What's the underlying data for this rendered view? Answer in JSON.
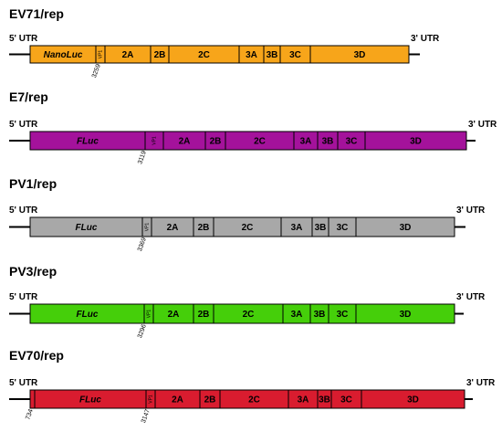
{
  "constructs": [
    {
      "title": "EV71/rep",
      "color": "#f7a51a",
      "left_utr": "5' UTR",
      "right_utr": "3' UTR",
      "segments": [
        {
          "label": "NanoLuc",
          "italic": true
        },
        {
          "label": "VP1",
          "tiny": true
        },
        {
          "label": "2A"
        },
        {
          "label": "2B"
        },
        {
          "label": "2C"
        },
        {
          "label": "3A"
        },
        {
          "label": "3B"
        },
        {
          "label": "3C"
        },
        {
          "label": "3D"
        }
      ],
      "positions": [
        {
          "label": "3259"
        }
      ]
    },
    {
      "title": "E7/rep",
      "color": "#a4129b",
      "left_utr": "5' UTR",
      "right_utr": "3' UTR",
      "segments": [
        {
          "label": "FLuc",
          "italic": true
        },
        {
          "label": "VP1",
          "tiny": true
        },
        {
          "label": "2A"
        },
        {
          "label": "2B"
        },
        {
          "label": "2C"
        },
        {
          "label": "3A"
        },
        {
          "label": "3B"
        },
        {
          "label": "3C"
        },
        {
          "label": "3D"
        }
      ],
      "positions": [
        {
          "label": "3119"
        }
      ]
    },
    {
      "title": "PV1/rep",
      "color": "#a8a8a8",
      "left_utr": "5' UTR",
      "right_utr": "3' UTR",
      "segments": [
        {
          "label": "FLuc",
          "italic": true
        },
        {
          "label": "VP1",
          "tiny": true
        },
        {
          "label": "2A"
        },
        {
          "label": "2B"
        },
        {
          "label": "2C"
        },
        {
          "label": "3A"
        },
        {
          "label": "3B"
        },
        {
          "label": "3C"
        },
        {
          "label": "3D"
        }
      ],
      "positions": [
        {
          "label": "3369"
        }
      ]
    },
    {
      "title": "PV3/rep",
      "color": "#45cf0a",
      "left_utr": "5' UTR",
      "right_utr": "3' UTR",
      "segments": [
        {
          "label": "FLuc",
          "italic": true
        },
        {
          "label": "VP1",
          "tiny": true
        },
        {
          "label": "2A"
        },
        {
          "label": "2B"
        },
        {
          "label": "2C"
        },
        {
          "label": "3A"
        },
        {
          "label": "3B"
        },
        {
          "label": "3C"
        },
        {
          "label": "3D"
        }
      ],
      "positions": [
        {
          "label": "3296"
        }
      ]
    },
    {
      "title": "EV70/rep",
      "color": "#d91c2f",
      "left_utr": "5' UTR",
      "right_utr": "3' UTR",
      "segments": [
        {
          "label": "",
          "tiny": true
        },
        {
          "label": "FLuc",
          "italic": true
        },
        {
          "label": "VP1",
          "tiny": true
        },
        {
          "label": "2A"
        },
        {
          "label": "2B"
        },
        {
          "label": "2C"
        },
        {
          "label": "3A"
        },
        {
          "label": "3B"
        },
        {
          "label": "3C"
        },
        {
          "label": "3D"
        }
      ],
      "positions": [
        {
          "label": "734"
        },
        {
          "label": "3147"
        }
      ]
    }
  ]
}
